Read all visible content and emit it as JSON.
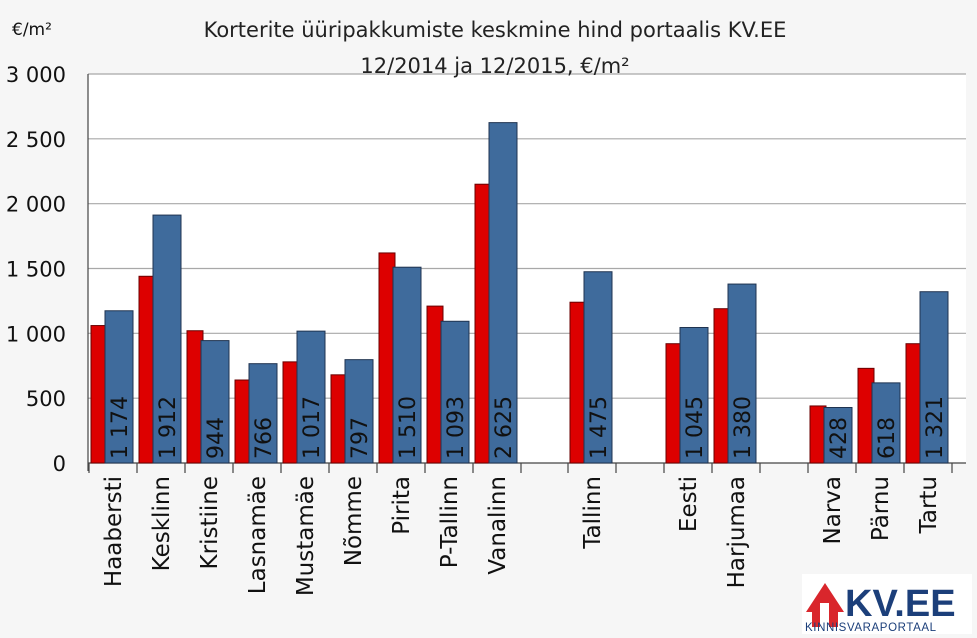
{
  "chart_data": {
    "type": "bar",
    "title": "Korterite üüripakkumiste keskmine hind portaalis KV.EE",
    "subtitle": "12/2014 ja 12/2015, €/m²",
    "ylabel": "€/m²",
    "ylim": [
      0,
      3000
    ],
    "yticks": [
      "0",
      "500",
      "1 000",
      "1 500",
      "2 000",
      "2 500",
      "3 000"
    ],
    "grid": true,
    "categories": [
      "Haabersti",
      "Kesklinn",
      "Kristiine",
      "Lasnamäe",
      "Mustamäe",
      "Nõmme",
      "Pirita",
      "P-Tallinn",
      "Vanalinn",
      "Tallinn",
      "Eesti",
      "Harjumaa",
      "Narva",
      "Pärnu",
      "Tartu"
    ],
    "series": [
      {
        "color": "#dd0000",
        "values": [
          1060,
          1440,
          1020,
          640,
          780,
          680,
          1620,
          1210,
          2150,
          1240,
          920,
          1190,
          440,
          730,
          920
        ]
      },
      {
        "color": "#3f6b9c",
        "values": [
          1174,
          1912,
          944,
          766,
          1017,
          797,
          1510,
          1093,
          2625,
          1475,
          1045,
          1380,
          428,
          618,
          1321
        ],
        "labels": [
          "1 174",
          "1 912",
          "944",
          "766",
          "1 017",
          "797",
          "1 510",
          "1 093",
          "2 625",
          "1 475",
          "1 045",
          "1 380",
          "428",
          "618",
          "1 321"
        ]
      }
    ]
  },
  "logo": {
    "text": "KV.EE",
    "subtext": "KINNISVARAPORTAAL"
  }
}
